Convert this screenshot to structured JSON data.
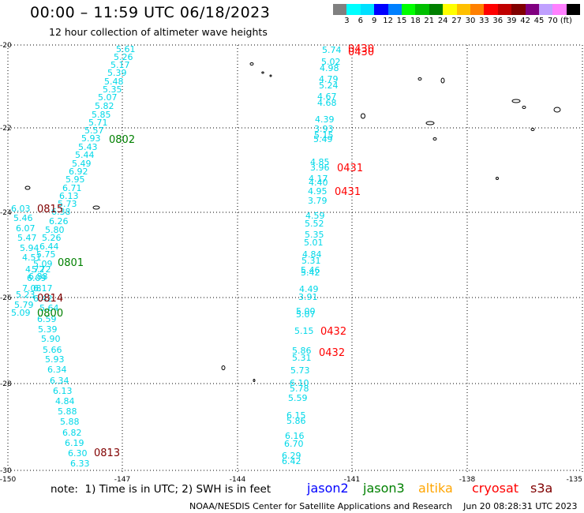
{
  "title": "00:00 – 11:59 UTC 06/18/2023",
  "subtitle": "12 hour collection of altimeter wave heights",
  "legend": {
    "unit": "(ft)",
    "colors": [
      "#808080",
      "#00ffff",
      "#00e0ff",
      "#0000ff",
      "#0080ff",
      "#00ff00",
      "#00c000",
      "#008000",
      "#ffff00",
      "#ffc000",
      "#ff8000",
      "#ff0000",
      "#c00000",
      "#800000",
      "#800080",
      "#c0a0ff",
      "#ff80ff",
      "#000000"
    ],
    "labels": [
      "3",
      "6",
      "9",
      "12",
      "15",
      "18",
      "21",
      "24",
      "27",
      "30",
      "33",
      "36",
      "39",
      "42",
      "45",
      "70"
    ]
  },
  "lat_labels": [
    "-20",
    "-22",
    "-24",
    "-26",
    "-28",
    "-30"
  ],
  "lon_labels": [
    "-150",
    "-147",
    "-144",
    "-141",
    "-138",
    "-135"
  ],
  "obs_color": "#00d8e8",
  "track_a": [
    "5.61",
    "5.26",
    "5.17",
    "5.39",
    "5.48",
    "5.35",
    "5.07",
    "5.82",
    "5.85",
    "5.71",
    "5.57",
    "5.93",
    "5.43",
    "5.44",
    "5.49",
    "6.92",
    "5.95",
    "6.71",
    "6.13",
    "5.73",
    "6.38",
    "6.26",
    "5.80",
    "5.26",
    "6.44",
    "5.75",
    "5.09",
    "5.72",
    "6.88",
    "6.17",
    "6.42",
    "5.64",
    "6.59",
    "5.39",
    "5.90",
    "5.66",
    "5.93",
    "6.34",
    "6.34",
    "6.13",
    "4.84",
    "5.88",
    "5.88",
    "6.82",
    "6.19",
    "6.30",
    "6.33"
  ],
  "track_a_left": [
    "6.03",
    "5.46",
    "6.07",
    "5.47",
    "5.94",
    "4.51",
    "4.72",
    "6.09",
    "7.08",
    "5.23",
    "5.79",
    "5.09"
  ],
  "track_b": [
    "5.74",
    "5.02",
    "4.98",
    "4.79",
    "5.24",
    "4.67",
    "4.68",
    "4.39",
    "3.93",
    "5.15",
    "5.49",
    "4.85",
    "3.96",
    "4.17",
    "4.40",
    "4.95",
    "3.79",
    "4.59",
    "5.52",
    "5.35",
    "5.01",
    "4.84",
    "5.31",
    "5.46",
    "5.42",
    "4.49",
    "3.91",
    "5.00",
    "5.07",
    "5.15",
    "5.86",
    "5.31",
    "5.73",
    "6.10",
    "5.78",
    "5.59",
    "6.15",
    "5.86",
    "6.16",
    "6.70",
    "6.29",
    "6.42"
  ],
  "times": [
    {
      "label": "0430",
      "sat": "cryosat"
    },
    {
      "label": "0430",
      "sat": "cryosat"
    },
    {
      "label": "0802",
      "sat": "jason3"
    },
    {
      "label": "0431",
      "sat": "cryosat"
    },
    {
      "label": "0431",
      "sat": "cryosat"
    },
    {
      "label": "0815",
      "sat": "s3a"
    },
    {
      "label": "0801",
      "sat": "jason3"
    },
    {
      "label": "0814",
      "sat": "s3a"
    },
    {
      "label": "0800",
      "sat": "jason3"
    },
    {
      "label": "0432",
      "sat": "cryosat"
    },
    {
      "label": "0432",
      "sat": "cryosat"
    },
    {
      "label": "0813",
      "sat": "s3a"
    }
  ],
  "note": "note:  1) Time is in UTC; 2) SWH is in feet",
  "satellites": [
    {
      "name": "jason2",
      "color": "#0000ff"
    },
    {
      "name": "jason3",
      "color": "#008000"
    },
    {
      "name": "altika",
      "color": "#ffa500"
    },
    {
      "name": "cryosat",
      "color": "#ff0000"
    },
    {
      "name": "s3a",
      "color": "#800000"
    }
  ],
  "credit": "NOAA/NESDIS Center for Satellite Applications and Research    Jun 20 08:28:31 UTC 2023"
}
